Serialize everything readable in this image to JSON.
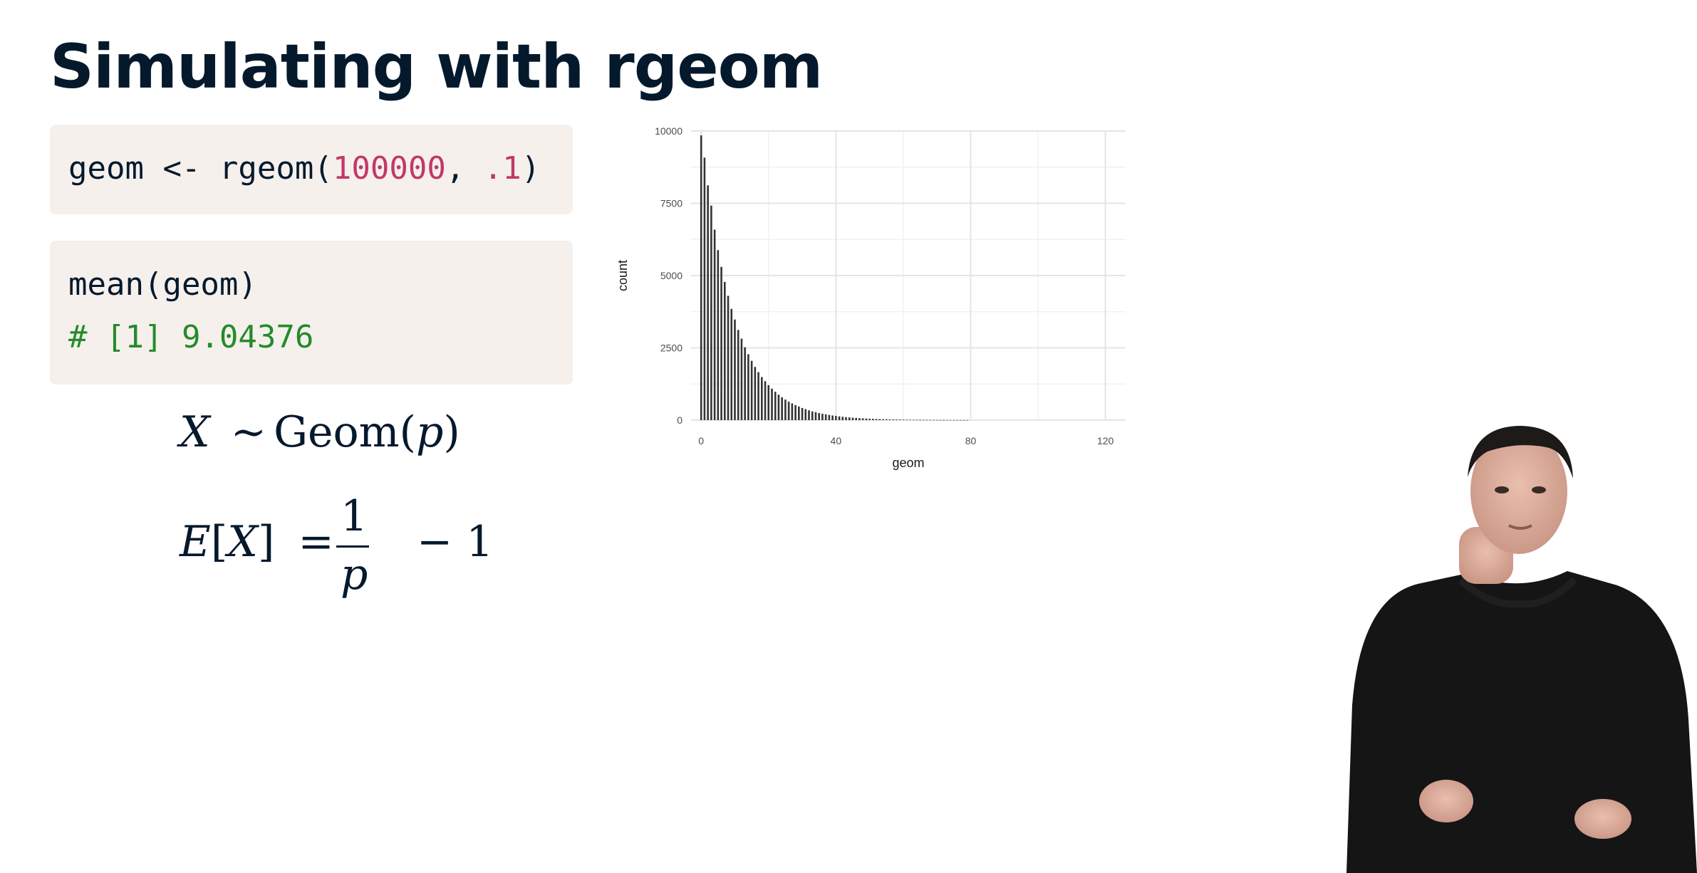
{
  "slide": {
    "title": "Simulating with rgeom"
  },
  "code_blocks": [
    {
      "lines": [
        {
          "parts": [
            {
              "text": "geom <- rgeom(",
              "kind": "plain"
            },
            {
              "text": "100000",
              "kind": "number"
            },
            {
              "text": ", ",
              "kind": "plain"
            },
            {
              "text": ".1",
              "kind": "number"
            },
            {
              "text": ")",
              "kind": "plain"
            }
          ]
        }
      ]
    },
    {
      "lines": [
        {
          "parts": [
            {
              "text": "mean(geom)",
              "kind": "plain"
            }
          ]
        },
        {
          "parts": [
            {
              "text": "# [1] 9.04376",
              "kind": "comment"
            }
          ]
        }
      ]
    }
  ],
  "math": {
    "dist": {
      "var": "X",
      "op": "∼",
      "fn": "Geom(",
      "param": "p",
      "close": ")"
    },
    "expectation": {
      "lhs_E": "E",
      "lhs_open": "[",
      "lhs_var": "X",
      "lhs_close": "]",
      "eq": "=",
      "numerator": "1",
      "denominator": "p",
      "tail": "− 1"
    }
  },
  "chart_data": {
    "type": "bar",
    "xlabel": "geom",
    "ylabel": "count",
    "xlim": [
      -3,
      126
    ],
    "ylim": [
      0,
      10000
    ],
    "x_ticks": [
      0,
      40,
      80,
      120
    ],
    "y_ticks": [
      0,
      2500,
      5000,
      7500,
      10000
    ],
    "grid": true,
    "x": [
      0,
      1,
      2,
      3,
      4,
      5,
      6,
      7,
      8,
      9,
      10,
      11,
      12,
      13,
      14,
      15,
      16,
      17,
      18,
      19,
      20,
      21,
      22,
      23,
      24,
      25,
      26,
      27,
      28,
      29,
      30,
      31,
      32,
      33,
      34,
      35,
      36,
      37,
      38,
      39,
      40,
      41,
      42,
      43,
      44,
      45,
      46,
      47,
      48,
      49,
      50,
      51,
      52,
      53,
      54,
      55,
      56,
      57,
      58,
      59,
      60,
      61,
      62,
      63,
      64,
      65,
      66,
      67,
      68,
      69,
      70,
      71,
      72,
      73,
      74,
      75,
      76,
      77,
      78,
      79
    ],
    "values": [
      9850,
      9080,
      8120,
      7420,
      6590,
      5880,
      5300,
      4780,
      4300,
      3850,
      3480,
      3120,
      2820,
      2520,
      2280,
      2050,
      1840,
      1660,
      1490,
      1350,
      1210,
      1090,
      980,
      880,
      790,
      710,
      640,
      580,
      520,
      470,
      420,
      380,
      340,
      300,
      275,
      245,
      220,
      200,
      180,
      160,
      145,
      130,
      115,
      105,
      95,
      85,
      77,
      69,
      62,
      56,
      50,
      45,
      40,
      36,
      33,
      29,
      26,
      24,
      21,
      19,
      17,
      15,
      14,
      12,
      11,
      10,
      9,
      8,
      7,
      6,
      6,
      5,
      5,
      4,
      4,
      3,
      3,
      3,
      2,
      2
    ]
  }
}
